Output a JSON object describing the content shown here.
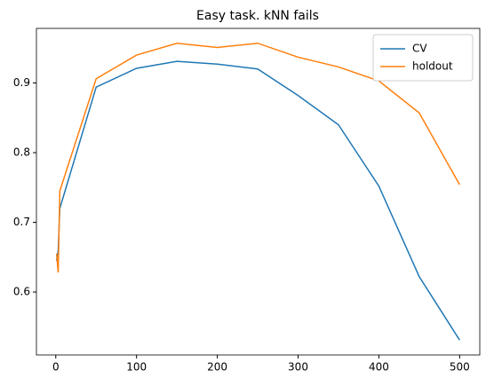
{
  "chart_data": {
    "type": "line",
    "title": "Easy task. kNN fails",
    "x": [
      1,
      3,
      5,
      50,
      100,
      150,
      200,
      250,
      300,
      350,
      400,
      450,
      500
    ],
    "series": [
      {
        "name": "CV",
        "color": "#1f77b4",
        "values": [
          0.645,
          0.66,
          0.72,
          0.894,
          0.921,
          0.931,
          0.927,
          0.92,
          0.882,
          0.84,
          0.752,
          0.622,
          0.531
        ]
      },
      {
        "name": "holdout",
        "color": "#ff7f0e",
        "values": [
          0.655,
          0.628,
          0.745,
          0.906,
          0.94,
          0.957,
          0.951,
          0.957,
          0.937,
          0.923,
          0.903,
          0.857,
          0.754
        ]
      }
    ],
    "xlim": [
      -23.95,
      524.95
    ],
    "xticks": [
      0,
      100,
      200,
      300,
      400,
      500
    ],
    "ylim": [
      0.5097,
      0.9783
    ],
    "yticks": [
      0.6,
      0.7,
      0.8,
      0.9
    ],
    "legend": "upper right"
  }
}
